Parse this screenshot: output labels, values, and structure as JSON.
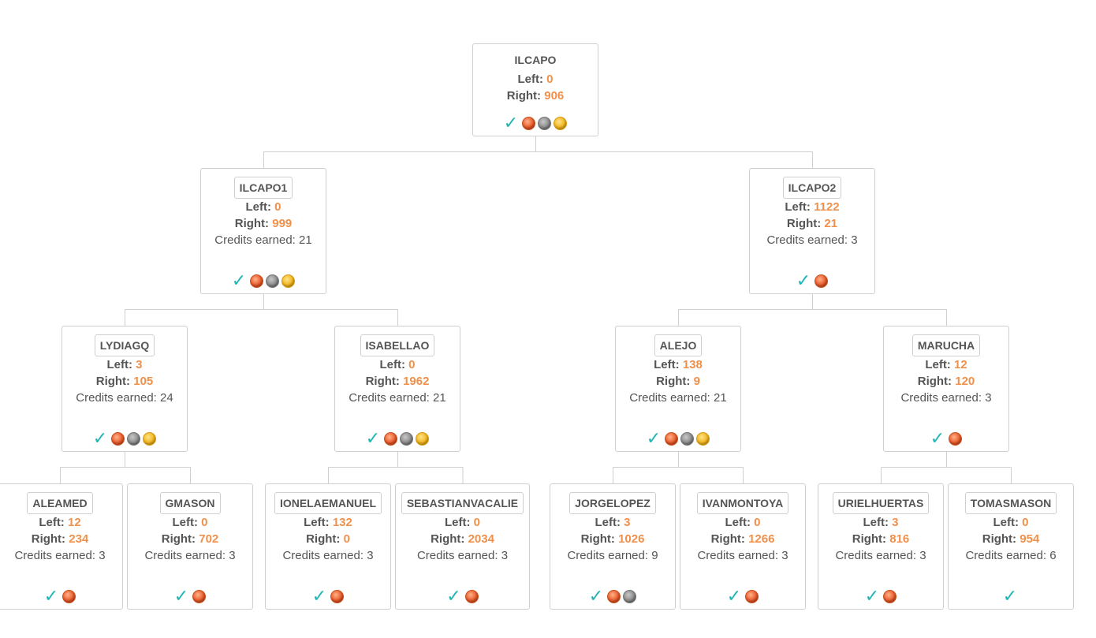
{
  "labels": {
    "left": "Left:",
    "right": "Right:",
    "credits": "Credits earned:"
  },
  "colors": {
    "accent_number": "#f0904a",
    "check": "#21b5b5",
    "border": "#cfcfcf"
  },
  "nodes": [
    {
      "name": "ILCAPO",
      "left": "0",
      "right": "906",
      "credits": "",
      "badges": [
        "check",
        "bronze",
        "silver",
        "gold"
      ]
    },
    {
      "name": "ILCAPO1",
      "left": "0",
      "right": "999",
      "credits": "21",
      "badges": [
        "check",
        "bronze",
        "silver",
        "gold"
      ]
    },
    {
      "name": "ILCAPO2",
      "left": "1122",
      "right": "21",
      "credits": "3",
      "badges": [
        "check",
        "bronze"
      ]
    },
    {
      "name": "LYDIAGQ",
      "left": "3",
      "right": "105",
      "credits": "24",
      "badges": [
        "check",
        "bronze",
        "silver",
        "gold"
      ]
    },
    {
      "name": "ISABELLAO",
      "left": "0",
      "right": "1962",
      "credits": "21",
      "badges": [
        "check",
        "bronze",
        "silver",
        "gold"
      ]
    },
    {
      "name": "ALEJO",
      "left": "138",
      "right": "9",
      "credits": "21",
      "badges": [
        "check",
        "bronze",
        "silver",
        "gold"
      ]
    },
    {
      "name": "MARUCHA",
      "left": "12",
      "right": "120",
      "credits": "3",
      "badges": [
        "check",
        "bronze"
      ]
    },
    {
      "name": "ALEAMED",
      "left": "12",
      "right": "234",
      "credits": "3",
      "badges": [
        "check",
        "bronze"
      ]
    },
    {
      "name": "GMASON",
      "left": "0",
      "right": "702",
      "credits": "3",
      "badges": [
        "check",
        "bronze"
      ]
    },
    {
      "name": "IONELAEMANUEL",
      "left": "132",
      "right": "0",
      "credits": "3",
      "badges": [
        "check",
        "bronze"
      ]
    },
    {
      "name": "SEBASTIANVACALIE",
      "left": "0",
      "right": "2034",
      "credits": "3",
      "badges": [
        "check",
        "bronze"
      ]
    },
    {
      "name": "JORGELOPEZ",
      "left": "3",
      "right": "1026",
      "credits": "9",
      "badges": [
        "check",
        "bronze",
        "silver"
      ]
    },
    {
      "name": "IVANMONTOYA",
      "left": "0",
      "right": "1266",
      "credits": "3",
      "badges": [
        "check",
        "bronze"
      ]
    },
    {
      "name": "URIELHUERTAS",
      "left": "3",
      "right": "816",
      "credits": "3",
      "badges": [
        "check",
        "bronze"
      ]
    },
    {
      "name": "TOMASMASON",
      "left": "0",
      "right": "954",
      "credits": "6",
      "badges": [
        "check"
      ]
    }
  ]
}
